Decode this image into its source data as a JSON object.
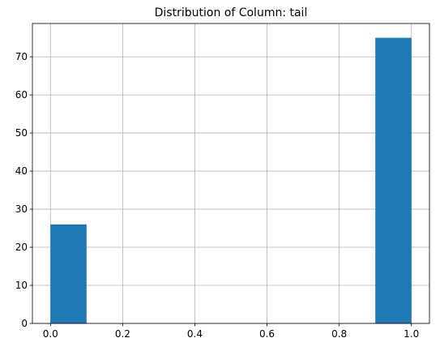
{
  "chart_data": {
    "type": "bar",
    "title": "Distribution of Column: tail",
    "xlabel": "",
    "ylabel": "",
    "grid": true,
    "bar_color": "#1f77b4",
    "xlim": [
      -0.05,
      1.05
    ],
    "ylim": [
      0,
      78.75
    ],
    "x_ticks": [
      0.0,
      0.2,
      0.4,
      0.6,
      0.8,
      1.0
    ],
    "x_tick_labels": [
      "0.0",
      "0.2",
      "0.4",
      "0.6",
      "0.8",
      "1.0"
    ],
    "y_ticks": [
      0,
      10,
      20,
      30,
      40,
      50,
      60,
      70
    ],
    "y_tick_labels": [
      "0",
      "10",
      "20",
      "30",
      "40",
      "50",
      "60",
      "70"
    ],
    "bins": [
      {
        "x0": 0.0,
        "x1": 0.1,
        "count": 26
      },
      {
        "x0": 0.1,
        "x1": 0.2,
        "count": 0
      },
      {
        "x0": 0.2,
        "x1": 0.3,
        "count": 0
      },
      {
        "x0": 0.3,
        "x1": 0.4,
        "count": 0
      },
      {
        "x0": 0.4,
        "x1": 0.5,
        "count": 0
      },
      {
        "x0": 0.5,
        "x1": 0.6,
        "count": 0
      },
      {
        "x0": 0.6,
        "x1": 0.7,
        "count": 0
      },
      {
        "x0": 0.7,
        "x1": 0.8,
        "count": 0
      },
      {
        "x0": 0.8,
        "x1": 0.9,
        "count": 0
      },
      {
        "x0": 0.9,
        "x1": 1.0,
        "count": 75
      }
    ]
  }
}
